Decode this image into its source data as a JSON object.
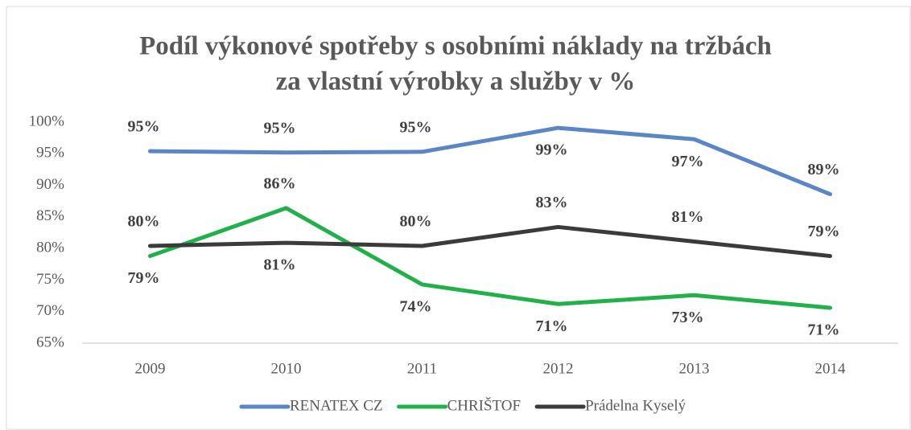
{
  "chart_data": {
    "type": "line",
    "title": [
      "Podíl výkonové spotřeby s osobními náklady na tržbách",
      "za vlastní výrobky a služby v %"
    ],
    "categories": [
      "2009",
      "2010",
      "2011",
      "2012",
      "2013",
      "2014"
    ],
    "series": [
      {
        "name": "RENATEX CZ",
        "color": "#5b86c5",
        "values": [
          95.4,
          95.2,
          95.3,
          99.1,
          97.3,
          88.6
        ],
        "value_labels": [
          "95%",
          "95%",
          "95%",
          "99%",
          "97%",
          "89%"
        ]
      },
      {
        "name": "CHRIŠTOF",
        "color": "#22b04b",
        "values": [
          78.8,
          86.4,
          74.3,
          71.2,
          72.6,
          70.6
        ],
        "value_labels": [
          "79%",
          "86%",
          "74%",
          "71%",
          "73%",
          "71%"
        ]
      },
      {
        "name": "Prádelna Kyselý",
        "color": "#3b3b3b",
        "values": [
          80.4,
          80.9,
          80.4,
          83.4,
          81.1,
          78.8
        ],
        "value_labels": [
          "80%",
          "81%",
          "80%",
          "83%",
          "81%",
          "79%"
        ]
      }
    ],
    "ylim": [
      65,
      100
    ],
    "yticks": [
      {
        "value": 65,
        "label": "65%"
      },
      {
        "value": 70,
        "label": "70%"
      },
      {
        "value": 75,
        "label": "75%"
      },
      {
        "value": 80,
        "label": "80%"
      },
      {
        "value": 85,
        "label": "85%"
      },
      {
        "value": 90,
        "label": "90%"
      },
      {
        "value": 95,
        "label": "95%"
      },
      {
        "value": 100,
        "label": "100%"
      }
    ],
    "legend": "bottom"
  }
}
